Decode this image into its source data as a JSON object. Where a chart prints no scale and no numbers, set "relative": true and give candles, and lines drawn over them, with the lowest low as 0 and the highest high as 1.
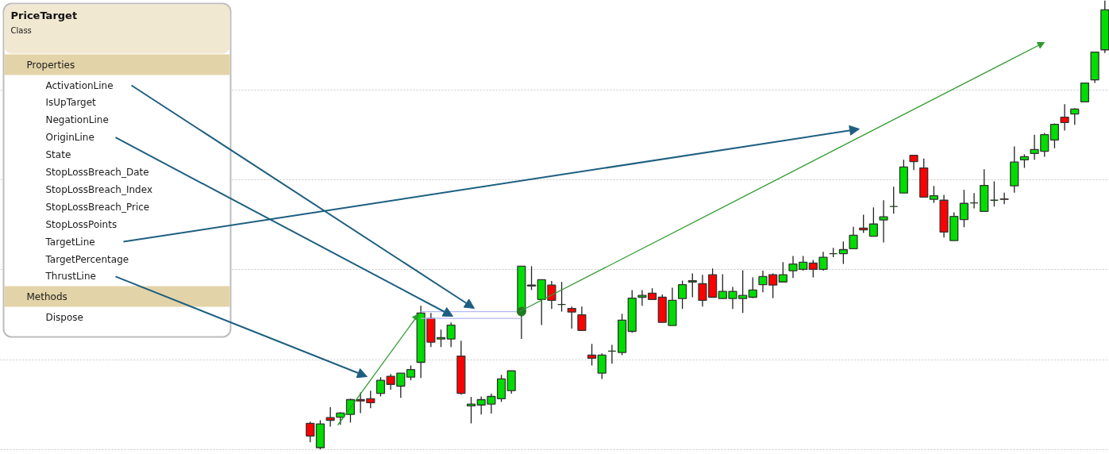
{
  "chart_data": {
    "type": "candlestick",
    "relative": true,
    "title": "PriceTarget",
    "subtitle": "Class",
    "annotations": [
      "Properties",
      "ActivationLine",
      "IsUpTarget",
      "NegationLine",
      "OriginLine",
      "State",
      "StopLossBreach_Date",
      "StopLossBreach_Index",
      "StopLossBreach_Price",
      "StopLossPoints",
      "TargetLine",
      "TargetPercentage",
      "ThrustLine",
      "Methods",
      "Dispose"
    ],
    "categories": [
      null,
      null,
      null,
      null,
      null,
      null,
      null,
      null,
      null,
      null,
      null,
      null,
      null,
      null,
      null,
      null,
      null,
      null,
      null,
      null,
      null,
      null,
      null,
      null,
      null,
      null,
      null,
      null,
      null,
      null,
      null,
      null,
      null,
      null,
      null,
      null,
      null,
      null,
      null,
      null,
      null,
      null,
      null,
      null,
      null,
      null,
      null,
      null,
      null,
      null,
      null,
      null,
      null,
      null,
      null,
      null,
      null,
      null,
      null,
      null,
      null,
      null,
      null,
      null,
      null,
      null,
      null,
      null,
      null,
      null,
      null,
      null,
      null,
      null,
      null,
      null,
      null,
      null,
      null,
      null
    ],
    "ohlc": [
      [
        0.058,
        0.062,
        0.016,
        0.03
      ],
      [
        0.004,
        0.065,
        0,
        0.057
      ],
      [
        0.071,
        0.094,
        0.051,
        0.065
      ],
      [
        0.072,
        0.083,
        0.055,
        0.081
      ],
      [
        0.078,
        0.113,
        0.06,
        0.111
      ],
      [
        0.111,
        0.127,
        0.081,
        0.108
      ],
      [
        0.113,
        0.131,
        0.092,
        0.104
      ],
      [
        0.125,
        0.161,
        0.118,
        0.154
      ],
      [
        0.163,
        0.168,
        0.133,
        0.145
      ],
      [
        0.141,
        0.17,
        0.115,
        0.17
      ],
      [
        0.161,
        0.187,
        0.154,
        0.178
      ],
      [
        0.194,
        0.32,
        0.159,
        0.304
      ],
      [
        0.292,
        0.304,
        0.228,
        0.239
      ],
      [
        0.246,
        0.267,
        0.228,
        0.249
      ],
      [
        0.246,
        0.283,
        0.228,
        0.277
      ],
      [
        0.208,
        0.242,
        0.122,
        0.125
      ],
      [
        0.097,
        0.117,
        0.058,
        0.101
      ],
      [
        0.099,
        0.118,
        0.078,
        0.111
      ],
      [
        0.101,
        0.124,
        0.08,
        0.118
      ],
      [
        0.113,
        0.166,
        0.106,
        0.157
      ],
      [
        0.131,
        0.175,
        0.124,
        0.175
      ],
      [
        0.307,
        0.408,
        0.246,
        0.408
      ],
      [
        0.366,
        0.408,
        0.355,
        0.364
      ],
      [
        0.334,
        0.378,
        0.277,
        0.378
      ],
      [
        0.366,
        0.375,
        0.313,
        0.332
      ],
      [
        0.323,
        0.373,
        0.307,
        0.323
      ],
      [
        0.314,
        0.318,
        0.269,
        0.306
      ],
      [
        0.3,
        0.318,
        0.265,
        0.265
      ],
      [
        0.21,
        0.235,
        0.187,
        0.203
      ],
      [
        0.17,
        0.214,
        0.157,
        0.21
      ],
      [
        0.219,
        0.233,
        0.191,
        0.219
      ],
      [
        0.216,
        0.302,
        0.21,
        0.288
      ],
      [
        0.263,
        0.355,
        0.26,
        0.337
      ],
      [
        0.339,
        0.355,
        0.32,
        0.343
      ],
      [
        0.348,
        0.359,
        0.334,
        0.334
      ],
      [
        0.339,
        0.345,
        0.283,
        0.283
      ],
      [
        0.276,
        0.36,
        0.276,
        0.332
      ],
      [
        0.336,
        0.376,
        0.313,
        0.367
      ],
      [
        0.373,
        0.392,
        0.339,
        0.376
      ],
      [
        0.369,
        0.389,
        0.318,
        0.332
      ],
      [
        0.389,
        0.403,
        0.339,
        0.339
      ],
      [
        0.336,
        0.39,
        0.336,
        0.352
      ],
      [
        0.336,
        0.362,
        0.313,
        0.352
      ],
      [
        0.336,
        0.399,
        0.304,
        0.343
      ],
      [
        0.339,
        0.383,
        0.337,
        0.355
      ],
      [
        0.367,
        0.398,
        0.35,
        0.385
      ],
      [
        0.389,
        0.392,
        0.337,
        0.366
      ],
      [
        0.373,
        0.417,
        0.373,
        0.389
      ],
      [
        0.398,
        0.431,
        0.382,
        0.413
      ],
      [
        0.401,
        0.431,
        0.398,
        0.417
      ],
      [
        0.415,
        0.422,
        0.383,
        0.401
      ],
      [
        0.401,
        0.44,
        0.398,
        0.428
      ],
      [
        0.436,
        0.449,
        0.428,
        0.436
      ],
      [
        0.436,
        0.463,
        0.413,
        0.445
      ],
      [
        0.447,
        0.496,
        0.447,
        0.477
      ],
      [
        0.493,
        0.523,
        0.482,
        0.489
      ],
      [
        0.475,
        0.539,
        0.475,
        0.502
      ],
      [
        0.511,
        0.555,
        0.461,
        0.518
      ],
      [
        0.541,
        0.585,
        0.525,
        0.541
      ],
      [
        0.571,
        0.645,
        0.571,
        0.629
      ],
      [
        0.655,
        0.655,
        0.622,
        0.641
      ],
      [
        0.627,
        0.648,
        0.562,
        0.562
      ],
      [
        0.557,
        0.587,
        0.549,
        0.565
      ],
      [
        0.555,
        0.567,
        0.472,
        0.484
      ],
      [
        0.465,
        0.528,
        0.465,
        0.519
      ],
      [
        0.512,
        0.578,
        0.495,
        0.548
      ],
      [
        0.549,
        0.571,
        0.537,
        0.549
      ],
      [
        0.53,
        0.624,
        0.53,
        0.588
      ],
      [
        0.555,
        0.597,
        0.541,
        0.555
      ],
      [
        0.558,
        0.572,
        0.546,
        0.557
      ],
      [
        0.587,
        0.675,
        0.572,
        0.64
      ],
      [
        0.645,
        0.657,
        0.627,
        0.652
      ],
      [
        0.659,
        0.701,
        0.645,
        0.668
      ],
      [
        0.664,
        0.705,
        0.652,
        0.701
      ],
      [
        0.689,
        0.726,
        0.671,
        0.724
      ],
      [
        0.74,
        0.769,
        0.71,
        0.728
      ],
      [
        0.747,
        0.76,
        0.723,
        0.758
      ],
      [
        0.774,
        0.816,
        0.774,
        0.816
      ],
      [
        0.823,
        0.885,
        0.816,
        0.885
      ],
      [
        0.89,
        1,
        0.883,
        0.979
      ]
    ],
    "colors": [
      "#ff0000",
      "#00dd00",
      "#ff0000",
      "#00dd00",
      "#00dd00",
      "#ff0000",
      "#ff0000",
      "#00dd00",
      "#ff0000",
      "#00dd00",
      "#00dd00",
      "#00dd00",
      "#ff0000",
      "#00dd00",
      "#00dd00",
      "#ff0000",
      "#00dd00",
      "#00dd00",
      "#00dd00",
      "#00dd00",
      "#00dd00",
      "#00dd00",
      "#ff0000",
      "#00dd00",
      "#ff0000",
      "#1e3a1e",
      "#ff0000",
      "#ff0000",
      "#ff0000",
      "#00dd00",
      "#1e3a1e",
      "#00dd00",
      "#00dd00",
      "#00dd00",
      "#ff0000",
      "#ff0000",
      "#00dd00",
      "#00dd00",
      "#00dd00",
      "#ff0000",
      "#ff0000",
      "#00dd00",
      "#00dd00",
      "#00dd00",
      "#00dd00",
      "#00dd00",
      "#ff0000",
      "#00dd00",
      "#00dd00",
      "#00dd00",
      "#ff0000",
      "#00dd00",
      "#1e3a1e",
      "#00dd00",
      "#00dd00",
      "#ff0000",
      "#00dd00",
      "#00dd00",
      "#1e3a1e",
      "#00dd00",
      "#ff0000",
      "#ff0000",
      "#00dd00",
      "#ff0000",
      "#00dd00",
      "#00dd00",
      "#1e3a1e",
      "#00dd00",
      "#1e3a1e",
      "#ff0000",
      "#00dd00",
      "#00dd00",
      "#00dd00",
      "#00dd00",
      "#00dd00",
      "#ff0000",
      "#00dd00",
      "#00dd00",
      "#00dd00",
      "#00dd00"
    ],
    "series": [
      {
        "type": "line",
        "color": "#b4b8f4",
        "values": [
          null,
          null,
          null,
          null,
          null,
          null,
          null,
          null,
          null,
          null,
          null,
          0.307,
          null,
          null,
          null,
          null,
          null,
          null,
          null,
          null,
          null,
          0.307,
          null,
          null,
          null,
          null,
          null,
          null,
          null,
          null,
          null,
          null,
          null,
          null,
          null,
          null,
          null,
          null,
          null,
          null,
          null,
          null,
          null,
          null,
          null,
          null,
          null,
          null,
          null,
          null,
          null,
          null,
          null,
          null,
          null,
          null,
          null,
          null,
          null,
          null,
          null,
          null,
          null,
          null,
          null,
          null,
          null,
          null,
          null,
          null,
          null,
          null,
          null,
          null,
          null,
          null,
          null,
          null,
          null,
          null
        ]
      },
      {
        "type": "line",
        "color": "#b4b8f4",
        "values": [
          null,
          null,
          null,
          null,
          null,
          null,
          null,
          null,
          null,
          null,
          null,
          0.292,
          null,
          null,
          null,
          null,
          null,
          null,
          null,
          null,
          null,
          0.292,
          null,
          null,
          null,
          null,
          null,
          null,
          null,
          null,
          null,
          null,
          null,
          null,
          null,
          null,
          null,
          null,
          null,
          null,
          null,
          null,
          null,
          null,
          null,
          null,
          null,
          null,
          null,
          null,
          null,
          null,
          null,
          null,
          null,
          null,
          null,
          null,
          null,
          null,
          null,
          null,
          null,
          null,
          null,
          null,
          null,
          null,
          null,
          null,
          null,
          null,
          null,
          null,
          null,
          null,
          null,
          null,
          null,
          null
        ]
      },
      {
        "type": "scatter",
        "color": "#1f7a1f",
        "values": [
          null,
          null,
          null,
          null,
          null,
          null,
          null,
          null,
          null,
          null,
          null,
          null,
          null,
          null,
          null,
          null,
          null,
          null,
          null,
          null,
          null,
          0.307,
          null,
          null,
          null,
          null,
          null,
          null,
          null,
          null,
          null,
          null,
          null,
          null,
          null,
          null,
          null,
          null,
          null,
          null,
          null,
          null,
          null,
          null,
          null,
          null,
          null,
          null,
          null,
          null,
          null,
          null,
          null,
          null,
          null,
          null,
          null,
          null,
          null,
          null,
          null,
          null,
          null,
          null,
          null,
          null,
          null,
          null,
          null,
          null,
          null,
          null,
          null,
          null,
          null,
          null,
          null,
          null,
          null,
          null
        ]
      }
    ],
    "grid": "y"
  }
}
